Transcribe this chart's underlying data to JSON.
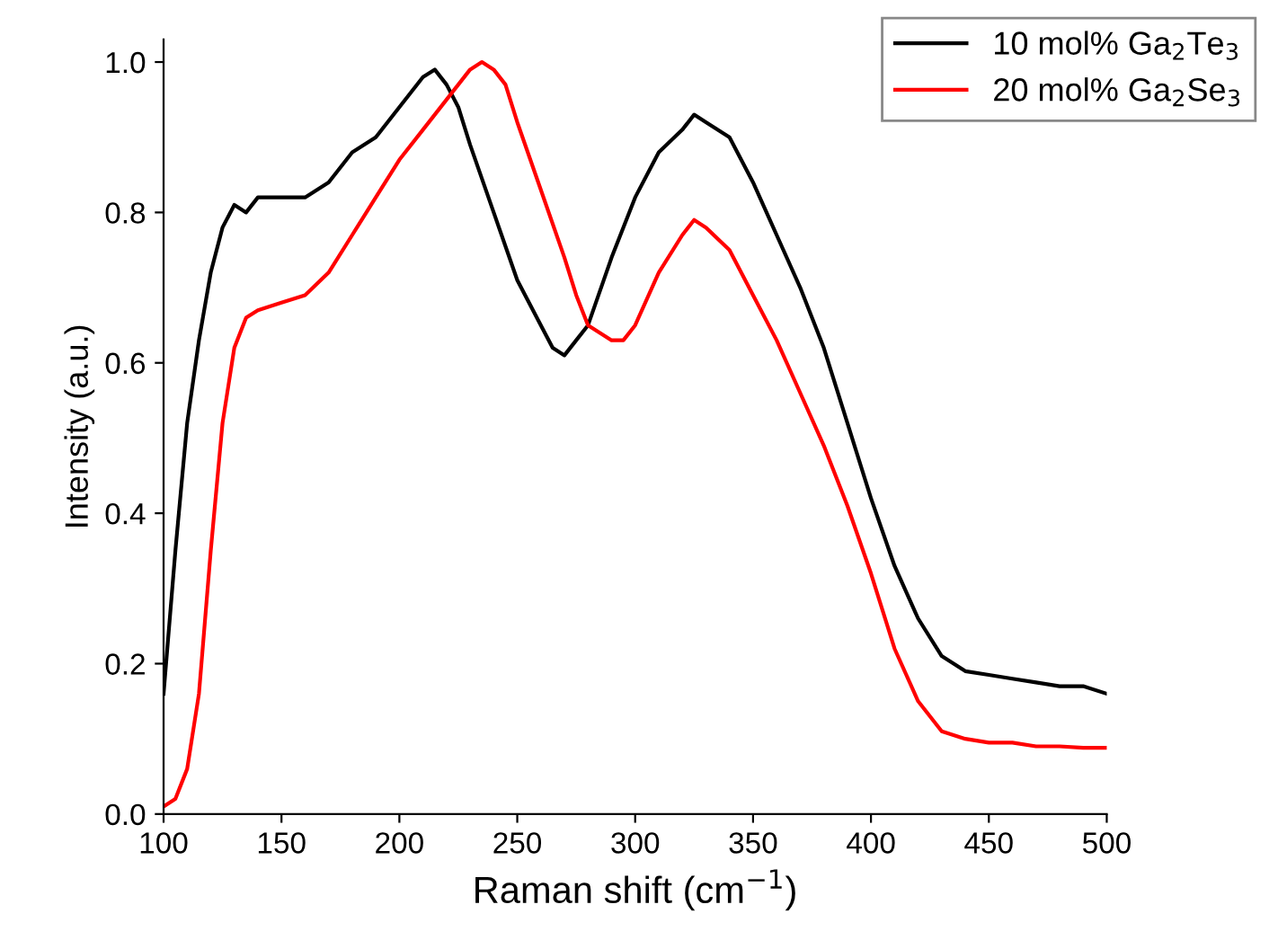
{
  "chart_data": {
    "type": "line",
    "xlabel": "Raman shift (cm$^{−1}$)",
    "ylabel": "Intensity (a.u.)",
    "xlim": [
      100,
      500
    ],
    "xticks": [
      100,
      150,
      200,
      250,
      300,
      350,
      400,
      450,
      500
    ],
    "ylim": [
      0,
      1.03
    ],
    "yticks": [
      {
        "value": 0,
        "label": "0.0"
      },
      0.2,
      0.4,
      0.6,
      0.8,
      {
        "value": 1,
        "label": "1.0"
      }
    ],
    "grid": false,
    "legend": "top right",
    "series": [
      {
        "name": "10 mol% Ga$_{2}$Te$_{3}$",
        "color": "#000000",
        "x": [
          100,
          105,
          110,
          115,
          120,
          125,
          130,
          135,
          140,
          150,
          160,
          170,
          180,
          190,
          200,
          205,
          210,
          215,
          220,
          225,
          230,
          240,
          250,
          260,
          265,
          270,
          275,
          280,
          290,
          300,
          310,
          320,
          325,
          330,
          340,
          350,
          360,
          370,
          380,
          390,
          400,
          410,
          420,
          430,
          440,
          450,
          460,
          470,
          480,
          490,
          500
        ],
        "values": [
          0.16,
          0.35,
          0.52,
          0.63,
          0.72,
          0.78,
          0.81,
          0.8,
          0.82,
          0.82,
          0.82,
          0.84,
          0.88,
          0.9,
          0.94,
          0.96,
          0.98,
          0.99,
          0.97,
          0.94,
          0.89,
          0.8,
          0.71,
          0.65,
          0.62,
          0.61,
          0.63,
          0.65,
          0.74,
          0.82,
          0.88,
          0.91,
          0.93,
          0.92,
          0.9,
          0.84,
          0.77,
          0.7,
          0.62,
          0.52,
          0.42,
          0.33,
          0.26,
          0.21,
          0.19,
          0.185,
          0.18,
          0.175,
          0.17,
          0.17,
          0.16
        ]
      },
      {
        "name": "20 mol% Ga$_{2}$Se$_{3}$",
        "color": "#ff0000",
        "x": [
          100,
          105,
          110,
          115,
          120,
          125,
          130,
          135,
          140,
          150,
          160,
          170,
          180,
          190,
          200,
          210,
          220,
          225,
          230,
          235,
          240,
          245,
          250,
          260,
          270,
          275,
          280,
          290,
          295,
          300,
          310,
          320,
          325,
          330,
          340,
          350,
          360,
          370,
          380,
          390,
          400,
          410,
          420,
          430,
          440,
          450,
          460,
          470,
          480,
          490,
          500
        ],
        "values": [
          0.01,
          0.02,
          0.06,
          0.16,
          0.35,
          0.52,
          0.62,
          0.66,
          0.67,
          0.68,
          0.69,
          0.72,
          0.77,
          0.82,
          0.87,
          0.91,
          0.95,
          0.97,
          0.99,
          1.0,
          0.99,
          0.97,
          0.92,
          0.83,
          0.74,
          0.69,
          0.65,
          0.63,
          0.63,
          0.65,
          0.72,
          0.77,
          0.79,
          0.78,
          0.75,
          0.69,
          0.63,
          0.56,
          0.49,
          0.41,
          0.32,
          0.22,
          0.15,
          0.11,
          0.1,
          0.095,
          0.095,
          0.09,
          0.09,
          0.088,
          0.088
        ]
      }
    ]
  }
}
